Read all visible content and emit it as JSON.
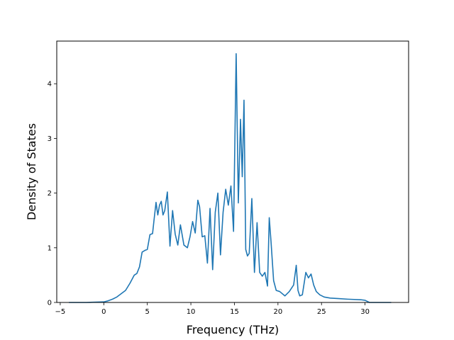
{
  "chart_data": {
    "type": "line",
    "title": "",
    "xlabel": "Frequency (THz)",
    "ylabel": "Density of States",
    "xlim": [
      -5.4,
      35.0
    ],
    "ylim": [
      0,
      4.78
    ],
    "xticks": [
      -5,
      0,
      5,
      10,
      15,
      20,
      25,
      30
    ],
    "yticks": [
      0,
      1,
      2,
      3,
      4
    ],
    "grid": false,
    "line_color": "#1f77b4",
    "series": [
      {
        "x": [
          -4.0,
          -2.0,
          0.0,
          0.5,
          1.0,
          1.5,
          2.0,
          2.5,
          3.0,
          3.5,
          3.8,
          4.1,
          4.4,
          4.7,
          5.0,
          5.3,
          5.6,
          5.8,
          6.0,
          6.2,
          6.4,
          6.6,
          6.8,
          7.0,
          7.3,
          7.6,
          7.9,
          8.2,
          8.5,
          8.8,
          9.2,
          9.6,
          9.9,
          10.2,
          10.5,
          10.8,
          11.0,
          11.3,
          11.6,
          11.9,
          12.2,
          12.5,
          12.8,
          13.1,
          13.4,
          13.7,
          14.0,
          14.3,
          14.6,
          14.9,
          15.2,
          15.45,
          15.7,
          15.9,
          16.1,
          16.3,
          16.5,
          16.7,
          17.0,
          17.3,
          17.6,
          17.9,
          18.2,
          18.5,
          18.8,
          19.0,
          19.2,
          19.5,
          19.8,
          20.2,
          20.8,
          21.3,
          21.8,
          22.1,
          22.3,
          22.5,
          22.8,
          23.2,
          23.5,
          23.8,
          24.1,
          24.4,
          24.8,
          25.3,
          26.0,
          27.0,
          28.0,
          29.5,
          30.0,
          30.5,
          31.5,
          33.0
        ],
        "y": [
          0,
          0,
          0.01,
          0.03,
          0.06,
          0.1,
          0.16,
          0.22,
          0.35,
          0.5,
          0.53,
          0.65,
          0.92,
          0.95,
          0.97,
          1.24,
          1.26,
          1.55,
          1.83,
          1.6,
          1.78,
          1.85,
          1.6,
          1.68,
          2.02,
          1.03,
          1.68,
          1.25,
          1.05,
          1.42,
          1.05,
          1.0,
          1.2,
          1.48,
          1.27,
          1.87,
          1.75,
          1.2,
          1.22,
          0.72,
          1.72,
          0.6,
          1.65,
          2.0,
          0.87,
          1.65,
          2.07,
          1.78,
          2.13,
          1.3,
          4.55,
          1.82,
          3.35,
          2.3,
          3.7,
          0.97,
          0.85,
          0.9,
          1.9,
          0.55,
          1.46,
          0.55,
          0.48,
          0.55,
          0.3,
          1.55,
          1.12,
          0.4,
          0.22,
          0.2,
          0.12,
          0.2,
          0.32,
          0.68,
          0.22,
          0.12,
          0.14,
          0.55,
          0.45,
          0.52,
          0.32,
          0.2,
          0.14,
          0.1,
          0.08,
          0.07,
          0.06,
          0.05,
          0.04,
          0.0,
          0.0,
          0.0
        ]
      }
    ]
  }
}
